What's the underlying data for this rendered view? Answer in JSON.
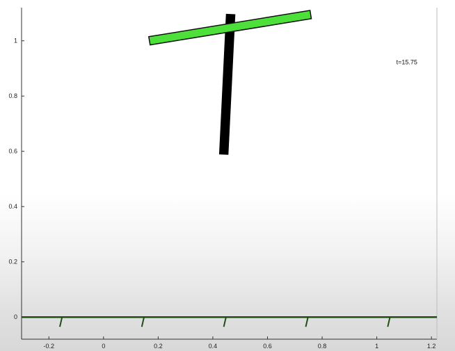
{
  "figure": {
    "time_label": "t=15.75",
    "colors": {
      "background_top": "#ffffff",
      "axis": "#333333",
      "ground": "#1f4d12",
      "platform_fill": "#4de03a",
      "platform_stroke": "#0f0f0f",
      "pole": "#000000"
    },
    "icons": [
      "ground-hatch-icon"
    ]
  },
  "chart_data": {
    "type": "scatter",
    "xlim": [
      -0.3,
      1.22
    ],
    "ylim": [
      -0.08,
      1.12
    ],
    "x_ticks": [
      -0.2,
      0,
      0.2,
      0.4,
      0.6,
      0.8,
      1,
      1.2
    ],
    "x_tick_labels": [
      "-0.2",
      "0",
      "0.2",
      "0.4",
      "0.6",
      "0.8",
      "1",
      "1.2"
    ],
    "y_ticks": [
      0,
      0.2,
      0.4,
      0.6,
      0.8,
      1
    ],
    "y_tick_labels": [
      "0",
      "0.2",
      "0.4",
      "0.6",
      "0.8",
      "1"
    ],
    "grid": false,
    "title": "",
    "xlabel": "",
    "ylabel": "",
    "ground_y": 0,
    "ground_hatch_x": [
      -0.16,
      0.14,
      0.44,
      0.74,
      1.04
    ],
    "pole": {
      "x_top": 0.465,
      "y_top": 1.095,
      "x_bottom": 0.44,
      "y_bottom": 0.59,
      "thickness": 0.03
    },
    "platform": {
      "x_left": 0.168,
      "y_left": 1.0,
      "x_right": 0.758,
      "y_right": 1.095,
      "thickness": 0.035
    },
    "time_label_pos": {
      "x": 1.11,
      "y": 0.915
    }
  }
}
